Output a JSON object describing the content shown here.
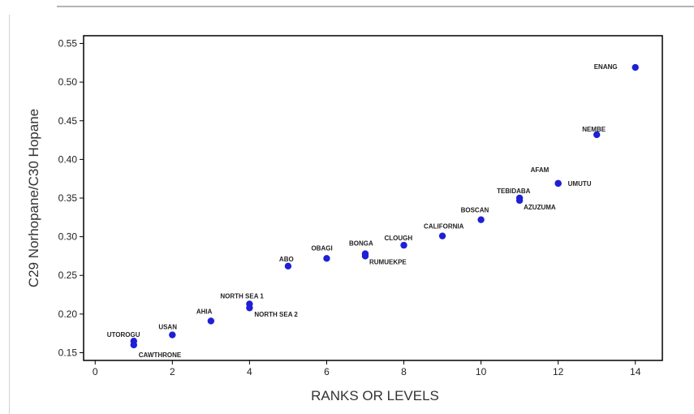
{
  "chart_data": {
    "type": "scatter",
    "xlabel": "RANKS OR LEVELS",
    "ylabel": "C29 Norhopane/C30 Hopane",
    "xlim": [
      -0.3,
      14.7
    ],
    "ylim": [
      0.14,
      0.56
    ],
    "xticks": [
      0,
      2,
      4,
      6,
      8,
      10,
      12,
      14
    ],
    "yticks": [
      0.15,
      0.2,
      0.25,
      0.3,
      0.35,
      0.4,
      0.45,
      0.5,
      0.55
    ],
    "ytick_labels": [
      "0.15",
      "0.20",
      "0.25",
      "0.30",
      "0.35",
      "0.40",
      "0.45",
      "0.50",
      "0.55"
    ],
    "grid": false,
    "marker_color": "#1f1fd6",
    "points": [
      {
        "label": "UTOROGU",
        "x": 1,
        "y": 0.165
      },
      {
        "label": "CAWTHRONE",
        "x": 1,
        "y": 0.16
      },
      {
        "label": "USAN",
        "x": 2,
        "y": 0.173
      },
      {
        "label": "AHIA",
        "x": 3,
        "y": 0.191
      },
      {
        "label": "NORTH SEA 1",
        "x": 4,
        "y": 0.213
      },
      {
        "label": "NORTH SEA 2",
        "x": 4,
        "y": 0.208
      },
      {
        "label": "ABO",
        "x": 5,
        "y": 0.262
      },
      {
        "label": "OBAGI",
        "x": 6,
        "y": 0.272
      },
      {
        "label": "BONGA",
        "x": 7,
        "y": 0.278
      },
      {
        "label": "RUMUEKPE",
        "x": 7,
        "y": 0.275
      },
      {
        "label": "CLOUGH",
        "x": 8,
        "y": 0.289
      },
      {
        "label": "CALIFORNIA",
        "x": 9,
        "y": 0.301
      },
      {
        "label": "BOSCAN",
        "x": 10,
        "y": 0.322
      },
      {
        "label": "TEBIDABA",
        "x": 11,
        "y": 0.35
      },
      {
        "label": "AZUZUMA",
        "x": 11,
        "y": 0.347
      },
      {
        "label": "AFAM",
        "x": 12,
        "y": 0.369
      },
      {
        "label": "UMUTU",
        "x": 12,
        "y": 0.369
      },
      {
        "label": "NEMBE",
        "x": 13,
        "y": 0.432
      },
      {
        "label": "ENANG",
        "x": 14,
        "y": 0.519
      }
    ]
  }
}
